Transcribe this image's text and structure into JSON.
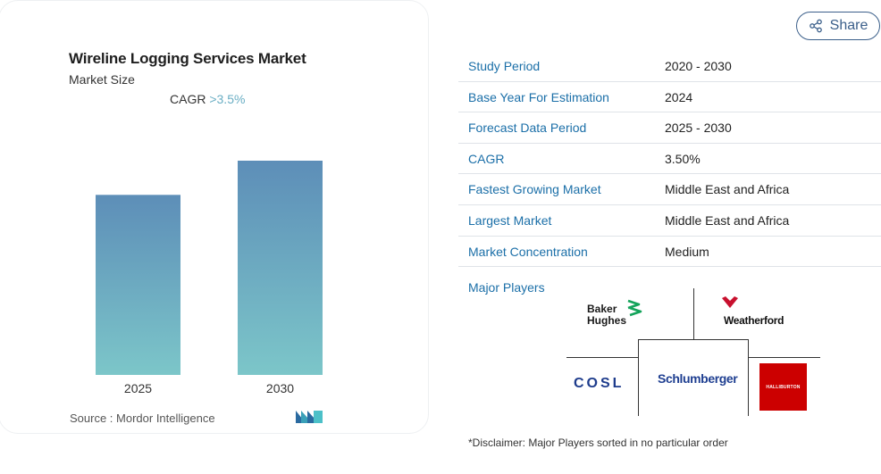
{
  "card": {
    "title": "Wireline Logging Services Market",
    "subtitle": "Market Size",
    "cagr_label": "CAGR",
    "cagr_value": ">3.5%",
    "source": "Source : Mordor Intelligence"
  },
  "chart_data": {
    "type": "bar",
    "categories": [
      "2025",
      "2030"
    ],
    "values": [
      1.0,
      1.19
    ],
    "title": "Wireline Logging Services Market",
    "subtitle": "Market Size",
    "xlabel": "",
    "ylabel": "",
    "grid": false,
    "colors": {
      "top": "#5d8eb8",
      "bottom": "#7cc6c9"
    }
  },
  "share": {
    "label": "Share",
    "icon": "share-icon"
  },
  "info_rows": [
    {
      "key": "Study Period",
      "value": "2020 - 2030"
    },
    {
      "key": "Base Year For Estimation",
      "value": "2024"
    },
    {
      "key": "Forecast Data Period",
      "value": "2025 - 2030"
    },
    {
      "key": "CAGR",
      "value": "3.50%"
    },
    {
      "key": "Fastest Growing Market",
      "value": "Middle East and Africa"
    },
    {
      "key": "Largest Market",
      "value": "Middle East and Africa"
    },
    {
      "key": "Market Concentration",
      "value": "Medium"
    }
  ],
  "major_players": {
    "label": "Major Players",
    "logos": {
      "baker_line1": "Baker",
      "baker_line2": "Hughes",
      "weatherford": "Weatherford",
      "cosl": "COSL",
      "schlumberger": "Schlumberger",
      "halliburton": "HALLIBURTON"
    }
  },
  "disclaimer": "*Disclaimer: Major Players sorted in no particular order",
  "colors": {
    "link": "#1b6fa8",
    "accent": "#6aaec4",
    "share_border": "#3b5f8a"
  }
}
